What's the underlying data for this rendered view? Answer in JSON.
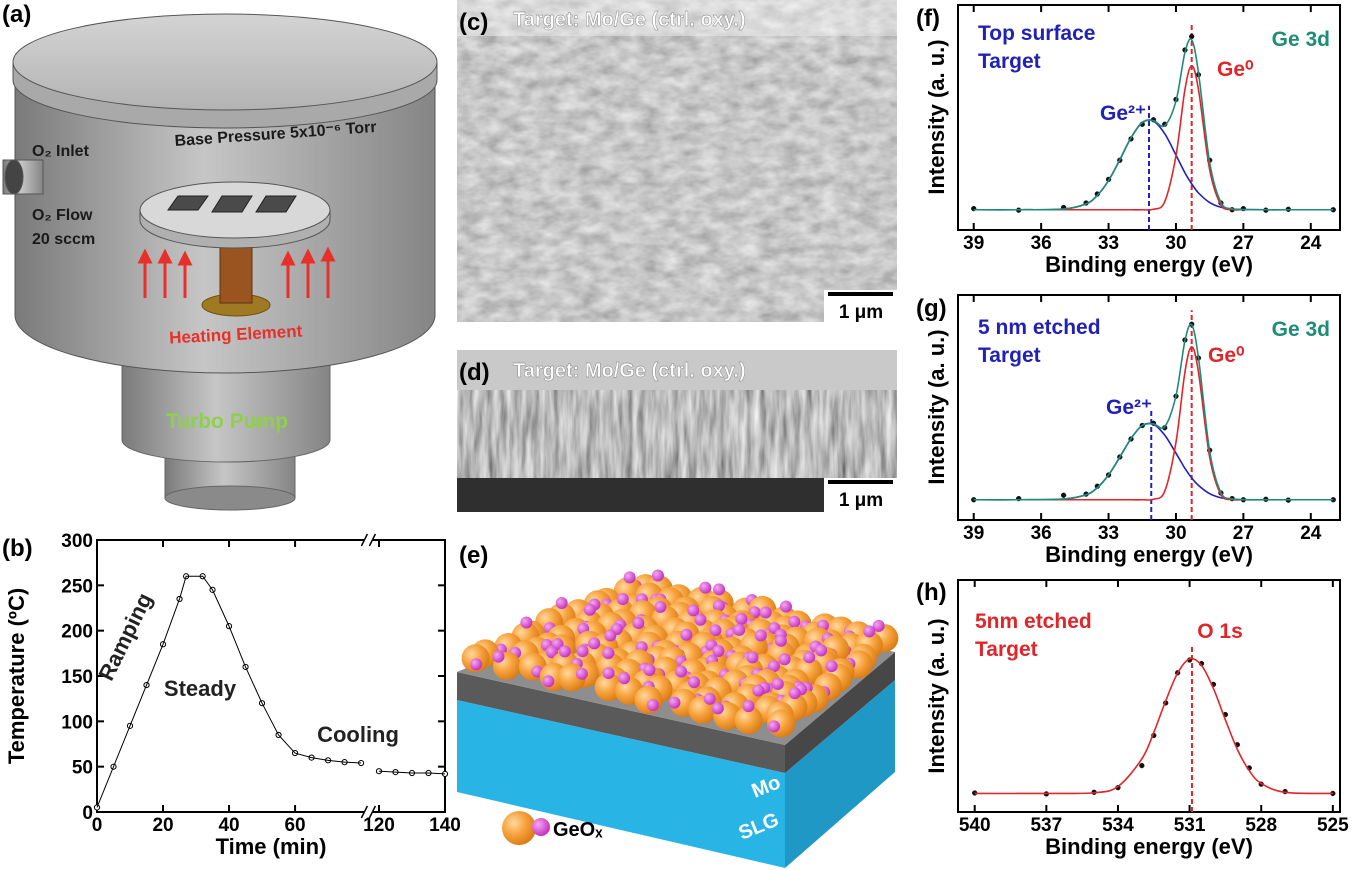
{
  "panels": {
    "a": {
      "label": "(a)",
      "base_pressure": "Base Pressure 5x10⁻⁶ Torr",
      "inlet": "O₂ Inlet",
      "flow": "O₂ Flow",
      "flow_rate": "20 sccm",
      "heater": "Heating Element",
      "pump": "Turbo Pump"
    },
    "c": {
      "label": "(c)",
      "caption": "Target: Mo/Ge (ctrl. oxy.)",
      "scale_bar": "1 μm"
    },
    "d": {
      "label": "(d)",
      "caption": "Target: Mo/Ge (ctrl. oxy.)",
      "scale_bar": "1 μm"
    },
    "e": {
      "label": "(e)",
      "legend": "GeOₓ",
      "top_layer": "Mo",
      "substrate": "SLG"
    }
  },
  "chart_data": [
    {
      "type": "line",
      "label": "(b)",
      "xlabel": "Time (min)",
      "ylabel": "Temperature (ºC)",
      "x": [
        0,
        5,
        10,
        15,
        20,
        25,
        27,
        32,
        35,
        40,
        45,
        50,
        55,
        60,
        65,
        70,
        75,
        80,
        120,
        125,
        130,
        135,
        140
      ],
      "series": [
        {
          "color": "#000000",
          "line": true,
          "markers": "open",
          "values": [
            5,
            50,
            95,
            140,
            185,
            235,
            260,
            260,
            245,
            205,
            160,
            120,
            85,
            65,
            60,
            57,
            55,
            54,
            45,
            44,
            43,
            43,
            42
          ]
        }
      ],
      "xlim": [
        0,
        140
      ],
      "xbreak": [
        81,
        118
      ],
      "xticks": [
        0,
        20,
        40,
        60,
        120,
        140
      ],
      "ylim": [
        0,
        300
      ],
      "yticks": [
        0,
        50,
        100,
        150,
        200,
        250,
        300
      ],
      "annotations": [
        {
          "text": "Ramping",
          "color": "#222222"
        },
        {
          "text": "Steady",
          "color": "#222222"
        },
        {
          "text": "Cooling",
          "color": "#222222"
        }
      ]
    },
    {
      "type": "line",
      "label": "(f)",
      "xlabel": "Binding energy (eV)",
      "ylabel": "Intensity (a. u.)",
      "x": [
        39,
        37,
        35,
        34,
        33.5,
        33,
        32.5,
        32,
        31.5,
        31,
        30.5,
        30,
        29.6,
        29.3,
        29,
        28.5,
        28,
        27.5,
        27,
        26,
        25,
        23
      ],
      "series": [
        {
          "color": "#111111",
          "line": false,
          "markers": "filled",
          "values": [
            0.095,
            0.088,
            0.1,
            0.12,
            0.16,
            0.225,
            0.31,
            0.405,
            0.47,
            0.49,
            0.47,
            0.58,
            0.8,
            0.86,
            0.69,
            0.31,
            0.12,
            0.09,
            0.095,
            0.088,
            0.092,
            0.09
          ]
        },
        {
          "color": "#2121b8",
          "line": true,
          "values": [
            0.09,
            0.09,
            0.093,
            0.116,
            0.154,
            0.22,
            0.312,
            0.41,
            0.478,
            0.484,
            0.428,
            0.333,
            0.254,
            0.205,
            0.165,
            0.122,
            0.101,
            0.093,
            0.091,
            0.09,
            0.09,
            0.09
          ]
        },
        {
          "color": "#e0262a",
          "line": true,
          "values": [
            0.09,
            0.09,
            0.09,
            0.09,
            0.09,
            0.09,
            0.09,
            0.09,
            0.09,
            0.092,
            0.126,
            0.33,
            0.625,
            0.73,
            0.625,
            0.268,
            0.112,
            0.091,
            0.09,
            0.09,
            0.09,
            0.09
          ]
        },
        {
          "color": "#1f8c78",
          "line": true,
          "values": [
            0.09,
            0.09,
            0.093,
            0.116,
            0.154,
            0.22,
            0.312,
            0.41,
            0.478,
            0.486,
            0.464,
            0.573,
            0.789,
            0.845,
            0.7,
            0.3,
            0.123,
            0.094,
            0.091,
            0.09,
            0.09,
            0.09
          ]
        }
      ],
      "xlim": [
        39.7,
        22.7
      ],
      "xticks": [
        39,
        36,
        33,
        30,
        27,
        24
      ],
      "ylim": [
        0,
        1
      ],
      "vlines": [
        {
          "x": 31.2,
          "color": "#2121b8"
        },
        {
          "x": 29.3,
          "color": "#e0262a"
        }
      ],
      "annotations": [
        {
          "text": "Top surface",
          "color": "#2121b8"
        },
        {
          "text": "Target",
          "color": "#2121b8"
        },
        {
          "text": "Ge 3d",
          "color": "#1f8c78"
        },
        {
          "text": "Ge⁰",
          "color": "#e0262a"
        },
        {
          "text": "Ge²⁺",
          "color": "#2121b8"
        }
      ]
    },
    {
      "type": "line",
      "label": "(g)",
      "xlabel": "Binding energy (eV)",
      "ylabel": "Intensity (a. u.)",
      "x": [
        39,
        37,
        35,
        34,
        33.5,
        33,
        32.5,
        32,
        31.5,
        31,
        30.5,
        30,
        29.6,
        29.3,
        29,
        28.5,
        28,
        27.5,
        27,
        26,
        25,
        23
      ],
      "series": [
        {
          "color": "#111111",
          "line": false,
          "markers": "filled",
          "values": [
            0.09,
            0.095,
            0.11,
            0.115,
            0.15,
            0.2,
            0.28,
            0.36,
            0.42,
            0.43,
            0.41,
            0.55,
            0.8,
            0.87,
            0.72,
            0.31,
            0.12,
            0.095,
            0.09,
            0.092,
            0.088,
            0.09
          ]
        },
        {
          "color": "#2121b8",
          "line": true,
          "values": [
            0.09,
            0.09,
            0.093,
            0.112,
            0.144,
            0.2,
            0.279,
            0.362,
            0.42,
            0.425,
            0.377,
            0.297,
            0.229,
            0.187,
            0.154,
            0.117,
            0.099,
            0.093,
            0.09,
            0.09,
            0.09,
            0.09
          ]
        },
        {
          "color": "#e0262a",
          "line": true,
          "values": [
            0.09,
            0.09,
            0.09,
            0.09,
            0.09,
            0.09,
            0.09,
            0.09,
            0.09,
            0.092,
            0.128,
            0.345,
            0.658,
            0.77,
            0.658,
            0.279,
            0.113,
            0.091,
            0.09,
            0.09,
            0.09,
            0.09
          ]
        },
        {
          "color": "#1f8c78",
          "line": true,
          "values": [
            0.09,
            0.09,
            0.093,
            0.112,
            0.144,
            0.2,
            0.279,
            0.362,
            0.42,
            0.427,
            0.415,
            0.552,
            0.797,
            0.867,
            0.722,
            0.306,
            0.122,
            0.094,
            0.091,
            0.09,
            0.09,
            0.09
          ]
        }
      ],
      "xlim": [
        39.7,
        22.7
      ],
      "xticks": [
        39,
        36,
        33,
        30,
        27,
        24
      ],
      "ylim": [
        0,
        1
      ],
      "vlines": [
        {
          "x": 31.1,
          "color": "#2121b8"
        },
        {
          "x": 29.3,
          "color": "#e0262a"
        }
      ],
      "annotations": [
        {
          "text": "5 nm etched",
          "color": "#2121b8"
        },
        {
          "text": "Target",
          "color": "#2121b8"
        },
        {
          "text": "Ge 3d",
          "color": "#1f8c78"
        },
        {
          "text": "Ge⁰",
          "color": "#e0262a"
        },
        {
          "text": "Ge²⁺",
          "color": "#2121b8"
        }
      ]
    },
    {
      "type": "line",
      "label": "(h)",
      "xlabel": "Binding energy (eV)",
      "ylabel": "Intensity (a. u.)",
      "x": [
        540,
        537,
        535,
        534,
        533,
        532.5,
        532,
        531.5,
        531,
        530.5,
        530,
        529.5,
        529,
        528.5,
        528,
        527,
        525
      ],
      "series": [
        {
          "color": "#111111",
          "line": false,
          "markers": "filled",
          "values": [
            0.082,
            0.078,
            0.085,
            0.105,
            0.2,
            0.33,
            0.47,
            0.6,
            0.655,
            0.64,
            0.55,
            0.42,
            0.29,
            0.19,
            0.12,
            0.088,
            0.08
          ]
        },
        {
          "color": "#e0262a",
          "line": true,
          "values": [
            0.08,
            0.08,
            0.083,
            0.11,
            0.229,
            0.343,
            0.479,
            0.599,
            0.66,
            0.632,
            0.532,
            0.397,
            0.27,
            0.178,
            0.123,
            0.085,
            0.08
          ]
        }
      ],
      "xlim": [
        540.7,
        524.7
      ],
      "xticks": [
        540,
        537,
        534,
        531,
        528,
        525
      ],
      "ylim": [
        0,
        1
      ],
      "vlines": [
        {
          "x": 530.9,
          "color": "#e0262a"
        }
      ],
      "annotations": [
        {
          "text": "5nm etched",
          "color": "#e0262a"
        },
        {
          "text": "Target",
          "color": "#e0262a"
        },
        {
          "text": "O 1s",
          "color": "#e0262a"
        }
      ]
    }
  ]
}
